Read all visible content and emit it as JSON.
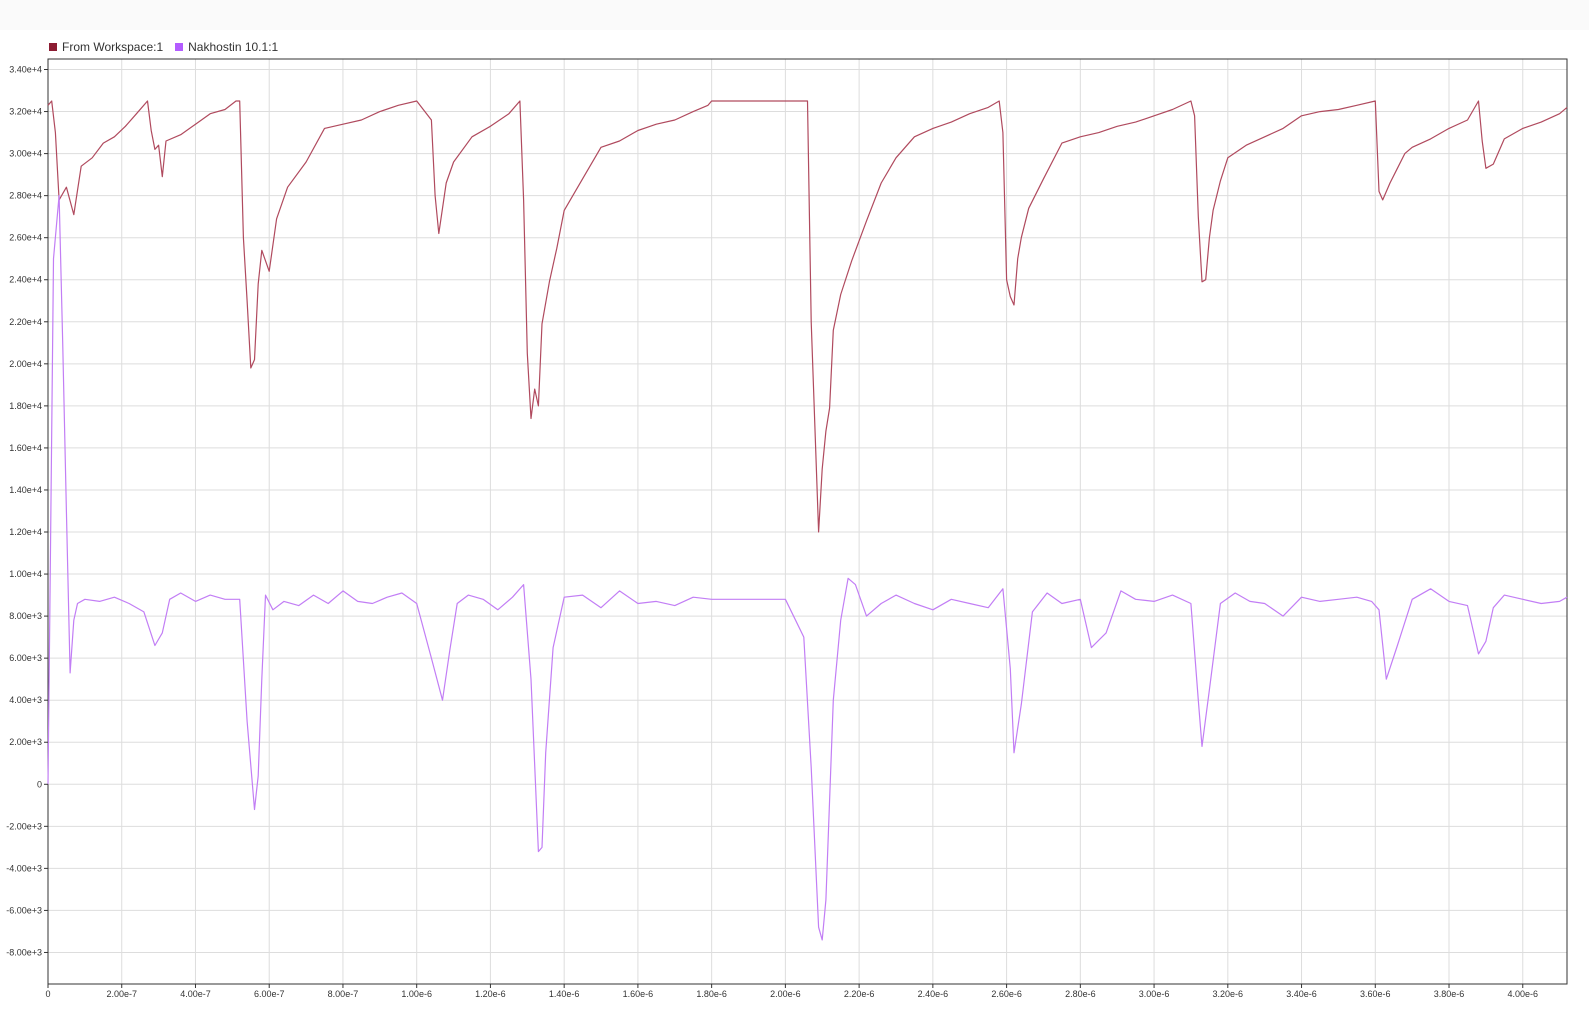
{
  "legend": {
    "items": [
      {
        "label": "From Workspace:1",
        "color": "#8c1c32"
      },
      {
        "label": "Nakhostin 10.1:1",
        "color": "#b35cff"
      }
    ]
  },
  "chart_data": {
    "type": "line",
    "title": "",
    "xlabel": "",
    "ylabel": "",
    "xlim": [
      0,
      4.12e-06
    ],
    "ylim": [
      -9500,
      34500
    ],
    "grid": true,
    "legend_position": "top-left",
    "x_ticks": [
      0,
      2e-07,
      4e-07,
      6e-07,
      8e-07,
      1e-06,
      1.2e-06,
      1.4e-06,
      1.6e-06,
      1.8e-06,
      2e-06,
      2.2e-06,
      2.4e-06,
      2.6e-06,
      2.8e-06,
      3e-06,
      3.2e-06,
      3.4e-06,
      3.6e-06,
      3.8e-06,
      4e-06
    ],
    "x_tick_labels": [
      "0",
      "2.00e-7",
      "4.00e-7",
      "6.00e-7",
      "8.00e-7",
      "1.00e-6",
      "1.20e-6",
      "1.40e-6",
      "1.60e-6",
      "1.80e-6",
      "2.00e-6",
      "2.20e-6",
      "2.40e-6",
      "2.60e-6",
      "2.80e-6",
      "3.00e-6",
      "3.20e-6",
      "3.40e-6",
      "3.60e-6",
      "3.80e-6",
      "4.00e-6"
    ],
    "y_ticks": [
      34000,
      32000,
      30000,
      28000,
      26000,
      24000,
      22000,
      20000,
      18000,
      16000,
      14000,
      12000,
      10000,
      8000,
      6000,
      4000,
      2000,
      0,
      -2000,
      -4000,
      -6000,
      -8000
    ],
    "y_tick_labels": [
      "3.40e+4",
      "3.20e+4",
      "3.00e+4",
      "2.80e+4",
      "2.60e+4",
      "2.40e+4",
      "2.20e+4",
      "2.00e+4",
      "1.80e+4",
      "1.60e+4",
      "1.40e+4",
      "1.20e+4",
      "1.00e+4",
      "8.00e+3",
      "6.00e+3",
      "4.00e+3",
      "2.00e+3",
      "0",
      "-2.00e+3",
      "-4.00e+3",
      "-6.00e+3",
      "-8.00e+3"
    ],
    "series": [
      {
        "name": "From Workspace:1",
        "color": "#b04a5e",
        "x": [
          0,
          1e-08,
          2e-08,
          3e-08,
          5e-08,
          7e-08,
          9e-08,
          1.2e-07,
          1.5e-07,
          1.8e-07,
          2.1e-07,
          2.4e-07,
          2.7e-07,
          2.8e-07,
          2.9e-07,
          3e-07,
          3.1e-07,
          3.2e-07,
          3.6e-07,
          4e-07,
          4.4e-07,
          4.8e-07,
          5.1e-07,
          5.2e-07,
          5.3e-07,
          5.4e-07,
          5.5e-07,
          5.6e-07,
          5.7e-07,
          5.8e-07,
          6e-07,
          6.2e-07,
          6.5e-07,
          7e-07,
          7.5e-07,
          8e-07,
          8.5e-07,
          9e-07,
          9.5e-07,
          1e-06,
          1.04e-06,
          1.05e-06,
          1.06e-06,
          1.07e-06,
          1.08e-06,
          1.1e-06,
          1.15e-06,
          1.2e-06,
          1.25e-06,
          1.28e-06,
          1.29e-06,
          1.3e-06,
          1.31e-06,
          1.32e-06,
          1.33e-06,
          1.34e-06,
          1.36e-06,
          1.38e-06,
          1.4e-06,
          1.45e-06,
          1.5e-06,
          1.55e-06,
          1.6e-06,
          1.65e-06,
          1.7e-06,
          1.75e-06,
          1.79e-06,
          1.8e-06,
          1.9e-06,
          2e-06,
          2.06e-06,
          2.07e-06,
          2.08e-06,
          2.09e-06,
          2.1e-06,
          2.11e-06,
          2.12e-06,
          2.13e-06,
          2.15e-06,
          2.18e-06,
          2.22e-06,
          2.26e-06,
          2.3e-06,
          2.35e-06,
          2.4e-06,
          2.45e-06,
          2.5e-06,
          2.55e-06,
          2.58e-06,
          2.59e-06,
          2.6e-06,
          2.61e-06,
          2.62e-06,
          2.63e-06,
          2.64e-06,
          2.66e-06,
          2.7e-06,
          2.75e-06,
          2.8e-06,
          2.85e-06,
          2.9e-06,
          2.95e-06,
          3e-06,
          3.05e-06,
          3.1e-06,
          3.11e-06,
          3.12e-06,
          3.13e-06,
          3.14e-06,
          3.15e-06,
          3.16e-06,
          3.18e-06,
          3.2e-06,
          3.25e-06,
          3.3e-06,
          3.35e-06,
          3.4e-06,
          3.45e-06,
          3.5e-06,
          3.55e-06,
          3.6e-06,
          3.61e-06,
          3.62e-06,
          3.64e-06,
          3.66e-06,
          3.68e-06,
          3.7e-06,
          3.75e-06,
          3.8e-06,
          3.85e-06,
          3.88e-06,
          3.89e-06,
          3.9e-06,
          3.92e-06,
          3.95e-06,
          4e-06,
          4.05e-06,
          4.1e-06,
          4.12e-06
        ],
        "y": [
          32300,
          32500,
          31000,
          27800,
          28400,
          27100,
          29400,
          29800,
          30500,
          30800,
          31300,
          31900,
          32500,
          31100,
          30200,
          30400,
          28900,
          30600,
          30900,
          31400,
          31900,
          32100,
          32500,
          32500,
          26000,
          23000,
          19800,
          20200,
          23800,
          25400,
          24400,
          26900,
          28400,
          29600,
          31200,
          31400,
          31600,
          32000,
          32300,
          32500,
          31600,
          28000,
          26200,
          27400,
          28600,
          29600,
          30800,
          31300,
          31900,
          32500,
          27800,
          20500,
          17400,
          18800,
          18000,
          21900,
          23900,
          25500,
          27300,
          28800,
          30300,
          30600,
          31100,
          31400,
          31600,
          32000,
          32300,
          32500,
          32500,
          32500,
          32500,
          22000,
          17000,
          12000,
          15000,
          16800,
          17900,
          21600,
          23300,
          24900,
          26800,
          28600,
          29800,
          30800,
          31200,
          31500,
          31900,
          32200,
          32500,
          31000,
          24000,
          23200,
          22800,
          25000,
          26000,
          27400,
          28800,
          30500,
          30800,
          31000,
          31300,
          31500,
          31800,
          32100,
          32500,
          31800,
          27000,
          23900,
          24000,
          26000,
          27300,
          28700,
          29800,
          30400,
          30800,
          31200,
          31800,
          32000,
          32100,
          32300,
          32500,
          28200,
          27800,
          28600,
          29300,
          30000,
          30300,
          30700,
          31200,
          31600,
          32500,
          30600,
          29300,
          29500,
          30700,
          31200,
          31500,
          31900,
          32200
        ]
      },
      {
        "name": "Nakhostin 10.1:1",
        "color": "#c27ef5",
        "x": [
          0,
          5e-09,
          1.5e-08,
          3e-08,
          4e-08,
          5e-08,
          6e-08,
          7e-08,
          8e-08,
          1e-07,
          1.4e-07,
          1.8e-07,
          2.2e-07,
          2.6e-07,
          2.9e-07,
          3.1e-07,
          3.3e-07,
          3.6e-07,
          4e-07,
          4.4e-07,
          4.8e-07,
          5.2e-07,
          5.4e-07,
          5.6e-07,
          5.7e-07,
          5.8e-07,
          5.9e-07,
          6.1e-07,
          6.4e-07,
          6.8e-07,
          7.2e-07,
          7.6e-07,
          8e-07,
          8.4e-07,
          8.8e-07,
          9.2e-07,
          9.6e-07,
          1e-06,
          1.04e-06,
          1.07e-06,
          1.09e-06,
          1.11e-06,
          1.14e-06,
          1.18e-06,
          1.22e-06,
          1.26e-06,
          1.29e-06,
          1.31e-06,
          1.33e-06,
          1.34e-06,
          1.35e-06,
          1.37e-06,
          1.4e-06,
          1.45e-06,
          1.5e-06,
          1.55e-06,
          1.6e-06,
          1.65e-06,
          1.7e-06,
          1.75e-06,
          1.8e-06,
          1.9e-06,
          2e-06,
          2.05e-06,
          2.07e-06,
          2.09e-06,
          2.1e-06,
          2.11e-06,
          2.13e-06,
          2.15e-06,
          2.17e-06,
          2.19e-06,
          2.22e-06,
          2.26e-06,
          2.3e-06,
          2.35e-06,
          2.4e-06,
          2.45e-06,
          2.5e-06,
          2.55e-06,
          2.59e-06,
          2.61e-06,
          2.62e-06,
          2.64e-06,
          2.67e-06,
          2.71e-06,
          2.75e-06,
          2.8e-06,
          2.83e-06,
          2.87e-06,
          2.91e-06,
          2.95e-06,
          3e-06,
          3.05e-06,
          3.1e-06,
          3.12e-06,
          3.13e-06,
          3.15e-06,
          3.18e-06,
          3.22e-06,
          3.26e-06,
          3.3e-06,
          3.35e-06,
          3.4e-06,
          3.45e-06,
          3.5e-06,
          3.55e-06,
          3.59e-06,
          3.61e-06,
          3.63e-06,
          3.66e-06,
          3.7e-06,
          3.75e-06,
          3.8e-06,
          3.85e-06,
          3.88e-06,
          3.9e-06,
          3.92e-06,
          3.95e-06,
          4e-06,
          4.05e-06,
          4.1e-06,
          4.12e-06
        ],
        "y": [
          0,
          8000,
          25000,
          28000,
          21000,
          13000,
          5300,
          7800,
          8600,
          8800,
          8700,
          8900,
          8600,
          8200,
          6600,
          7200,
          8800,
          9100,
          8700,
          9000,
          8800,
          8800,
          3000,
          -1200,
          400,
          5000,
          9000,
          8300,
          8700,
          8500,
          9000,
          8600,
          9200,
          8700,
          8600,
          8900,
          9100,
          8600,
          6000,
          4000,
          6400,
          8600,
          9000,
          8800,
          8300,
          8900,
          9500,
          5000,
          -3200,
          -3000,
          1500,
          6500,
          8900,
          9000,
          8400,
          9200,
          8600,
          8700,
          8500,
          8900,
          8800,
          8800,
          8800,
          7000,
          800,
          -6800,
          -7400,
          -5500,
          4000,
          7800,
          9800,
          9500,
          8000,
          8600,
          9000,
          8600,
          8300,
          8800,
          8600,
          8400,
          9300,
          5500,
          1500,
          3800,
          8200,
          9100,
          8600,
          8800,
          6500,
          7200,
          9200,
          8800,
          8700,
          9000,
          8600,
          4000,
          1800,
          4500,
          8600,
          9100,
          8700,
          8600,
          8000,
          8900,
          8700,
          8800,
          8900,
          8700,
          8300,
          5000,
          6600,
          8800,
          9300,
          8700,
          8500,
          6200,
          6800,
          8400,
          9000,
          8800,
          8600,
          8700,
          8900
        ]
      }
    ]
  }
}
